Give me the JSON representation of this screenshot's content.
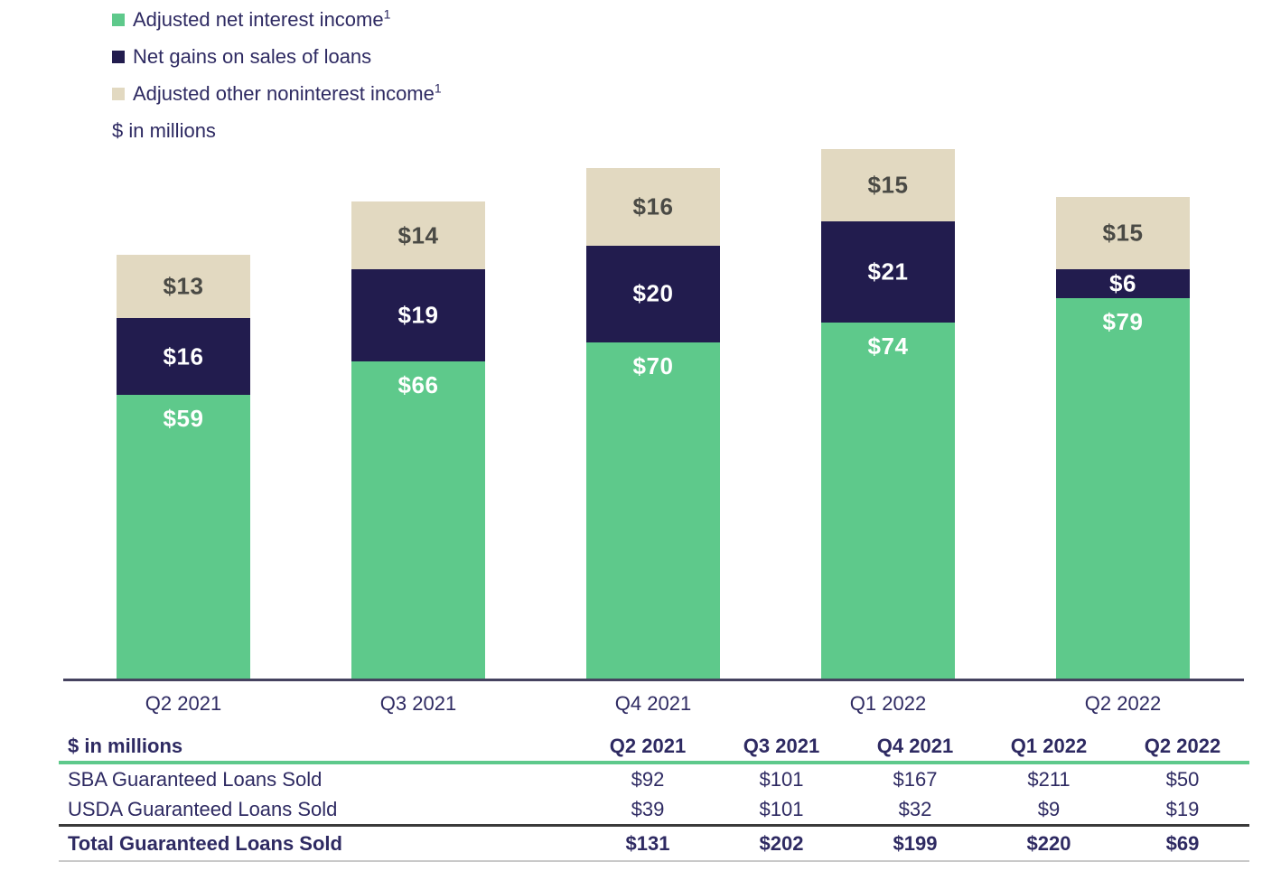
{
  "colors": {
    "green": "#5EC98B",
    "navy": "#221C4E",
    "beige": "#E2D9C1",
    "text_navy": "#2E2A62",
    "beige_label_text": "#4A4A45",
    "white_label_text": "#FFFFFF",
    "axis_line": "#45425F",
    "table_header_rule": "#5EC98B",
    "table_total_rule": "#3A3A3A",
    "table_bottom_rule": "#C9C9C9"
  },
  "legend": {
    "items": [
      {
        "label": "Adjusted net interest income",
        "superscript": "1",
        "swatch": "green"
      },
      {
        "label": "Net gains on sales of loans",
        "superscript": "",
        "swatch": "navy"
      },
      {
        "label": "Adjusted other noninterest income",
        "superscript": "1",
        "swatch": "beige"
      }
    ],
    "units_label": "$ in millions"
  },
  "chart_data": {
    "type": "bar",
    "stacked": true,
    "title": "",
    "xlabel": "",
    "ylabel": "$ in millions",
    "value_prefix": "$",
    "grid": false,
    "legend_position": "top-left",
    "categories": [
      "Q2 2021",
      "Q3 2021",
      "Q4 2021",
      "Q1 2022",
      "Q2 2022"
    ],
    "series": [
      {
        "name": "Adjusted net interest income",
        "color_key": "green",
        "label_color": "#FFFFFF",
        "values": [
          59,
          66,
          70,
          74,
          79
        ]
      },
      {
        "name": "Net gains on sales of loans",
        "color_key": "navy",
        "label_color": "#FFFFFF",
        "values": [
          16,
          19,
          20,
          21,
          6
        ]
      },
      {
        "name": "Adjusted other noninterest income",
        "color_key": "beige",
        "label_color": "#4A4A45",
        "values": [
          13,
          14,
          16,
          15,
          15
        ]
      }
    ]
  },
  "table": {
    "units_header": "$ in millions",
    "columns": [
      "Q2 2021",
      "Q3 2021",
      "Q4 2021",
      "Q1 2022",
      "Q2 2022"
    ],
    "rows": [
      {
        "label": "SBA Guaranteed Loans Sold",
        "values": [
          "$92",
          "$101",
          "$167",
          "$211",
          "$50"
        ],
        "bold": false
      },
      {
        "label": "USDA Guaranteed Loans Sold",
        "values": [
          "$39",
          "$101",
          "$32",
          "$9",
          "$19"
        ],
        "bold": false
      },
      {
        "label": "Total Guaranteed Loans Sold",
        "values": [
          "$131",
          "$202",
          "$199",
          "$220",
          "$69"
        ],
        "bold": true
      }
    ]
  }
}
